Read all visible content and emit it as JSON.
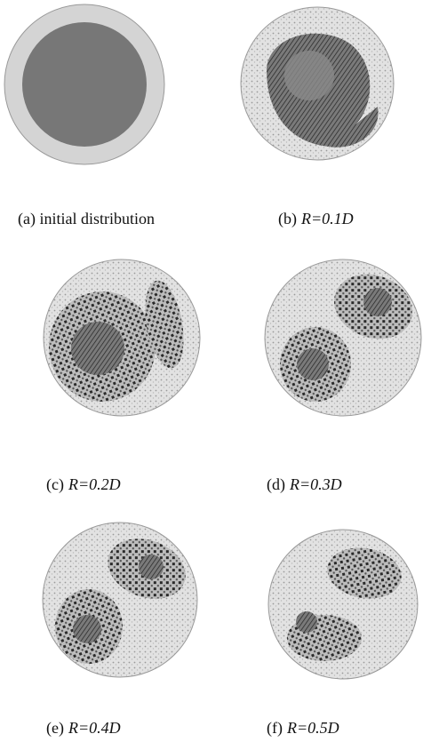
{
  "panels": [
    {
      "label": "(a) initial distribution"
    },
    {
      "label": "(b)",
      "param": "R=0.1D"
    },
    {
      "label": "(c)",
      "param": "R=0.2D"
    },
    {
      "label": "(d)",
      "param": "R=0.3D"
    },
    {
      "label": "(e)",
      "param": "R=0.4D"
    },
    {
      "label": "(f)",
      "param": "R=0.5D"
    }
  ]
}
